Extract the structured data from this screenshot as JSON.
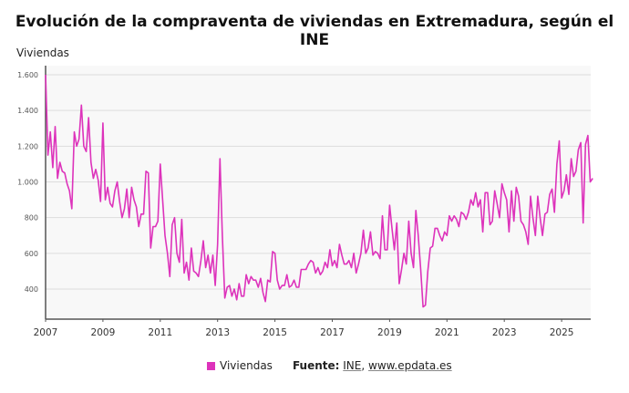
{
  "chart_data": {
    "type": "line",
    "title": "Evolución de la compraventa de viviendas en Extremadura, según el INE",
    "ylabel": "Viviendas",
    "xlabel": "",
    "x_start": "2007-01",
    "x_frequency": "monthly",
    "ylim": [
      230,
      1650
    ],
    "yticks": [
      "400",
      "600",
      "800",
      "1.000",
      "1.200",
      "1.400",
      "1.600"
    ],
    "xticks": [
      "2007",
      "2009",
      "2011",
      "2013",
      "2015",
      "2017",
      "2019",
      "2021",
      "2023",
      "2025"
    ],
    "grid": true,
    "legend_position": "bottom",
    "series": [
      {
        "name": "Viviendas",
        "color": "#dd33bb",
        "values": [
          1600,
          1150,
          1280,
          1080,
          1310,
          1020,
          1110,
          1060,
          1050,
          990,
          950,
          850,
          1280,
          1200,
          1240,
          1430,
          1200,
          1170,
          1360,
          1110,
          1020,
          1070,
          1010,
          890,
          1330,
          900,
          970,
          880,
          860,
          950,
          1000,
          890,
          800,
          850,
          960,
          800,
          970,
          900,
          860,
          750,
          820,
          820,
          1060,
          1050,
          630,
          750,
          750,
          780,
          1100,
          900,
          700,
          600,
          470,
          760,
          800,
          600,
          550,
          790,
          490,
          550,
          450,
          630,
          500,
          490,
          470,
          560,
          670,
          520,
          590,
          490,
          590,
          420,
          650,
          1130,
          700,
          350,
          410,
          420,
          360,
          400,
          340,
          430,
          360,
          360,
          480,
          430,
          470,
          450,
          450,
          410,
          460,
          380,
          330,
          450,
          440,
          610,
          600,
          450,
          400,
          420,
          420,
          480,
          410,
          420,
          450,
          410,
          410,
          510,
          510,
          510,
          540,
          560,
          550,
          490,
          520,
          480,
          500,
          550,
          520,
          620,
          530,
          560,
          520,
          650,
          590,
          540,
          540,
          560,
          520,
          600,
          490,
          540,
          600,
          730,
          600,
          630,
          720,
          590,
          610,
          600,
          570,
          810,
          620,
          620,
          870,
          740,
          620,
          770,
          430,
          510,
          600,
          540,
          780,
          600,
          520,
          840,
          700,
          510,
          300,
          310,
          500,
          630,
          640,
          740,
          740,
          700,
          670,
          720,
          700,
          810,
          780,
          810,
          790,
          750,
          830,
          820,
          790,
          830,
          900,
          870,
          940,
          860,
          900,
          720,
          940,
          940,
          760,
          780,
          950,
          880,
          800,
          990,
          940,
          900,
          720,
          950,
          780,
          970,
          920,
          780,
          760,
          720,
          650,
          920,
          800,
          700,
          920,
          800,
          700,
          820,
          830,
          930,
          960,
          830,
          1100,
          1230,
          910,
          950,
          1040,
          930,
          1130,
          1030,
          1060,
          1180,
          1220,
          770,
          1210,
          1260,
          1000,
          1020
        ]
      }
    ]
  },
  "legend": {
    "label": "Viviendas"
  },
  "source": {
    "prefix": "Fuente:",
    "name": "INE",
    "sep": ",",
    "url": "www.epdata.es"
  }
}
